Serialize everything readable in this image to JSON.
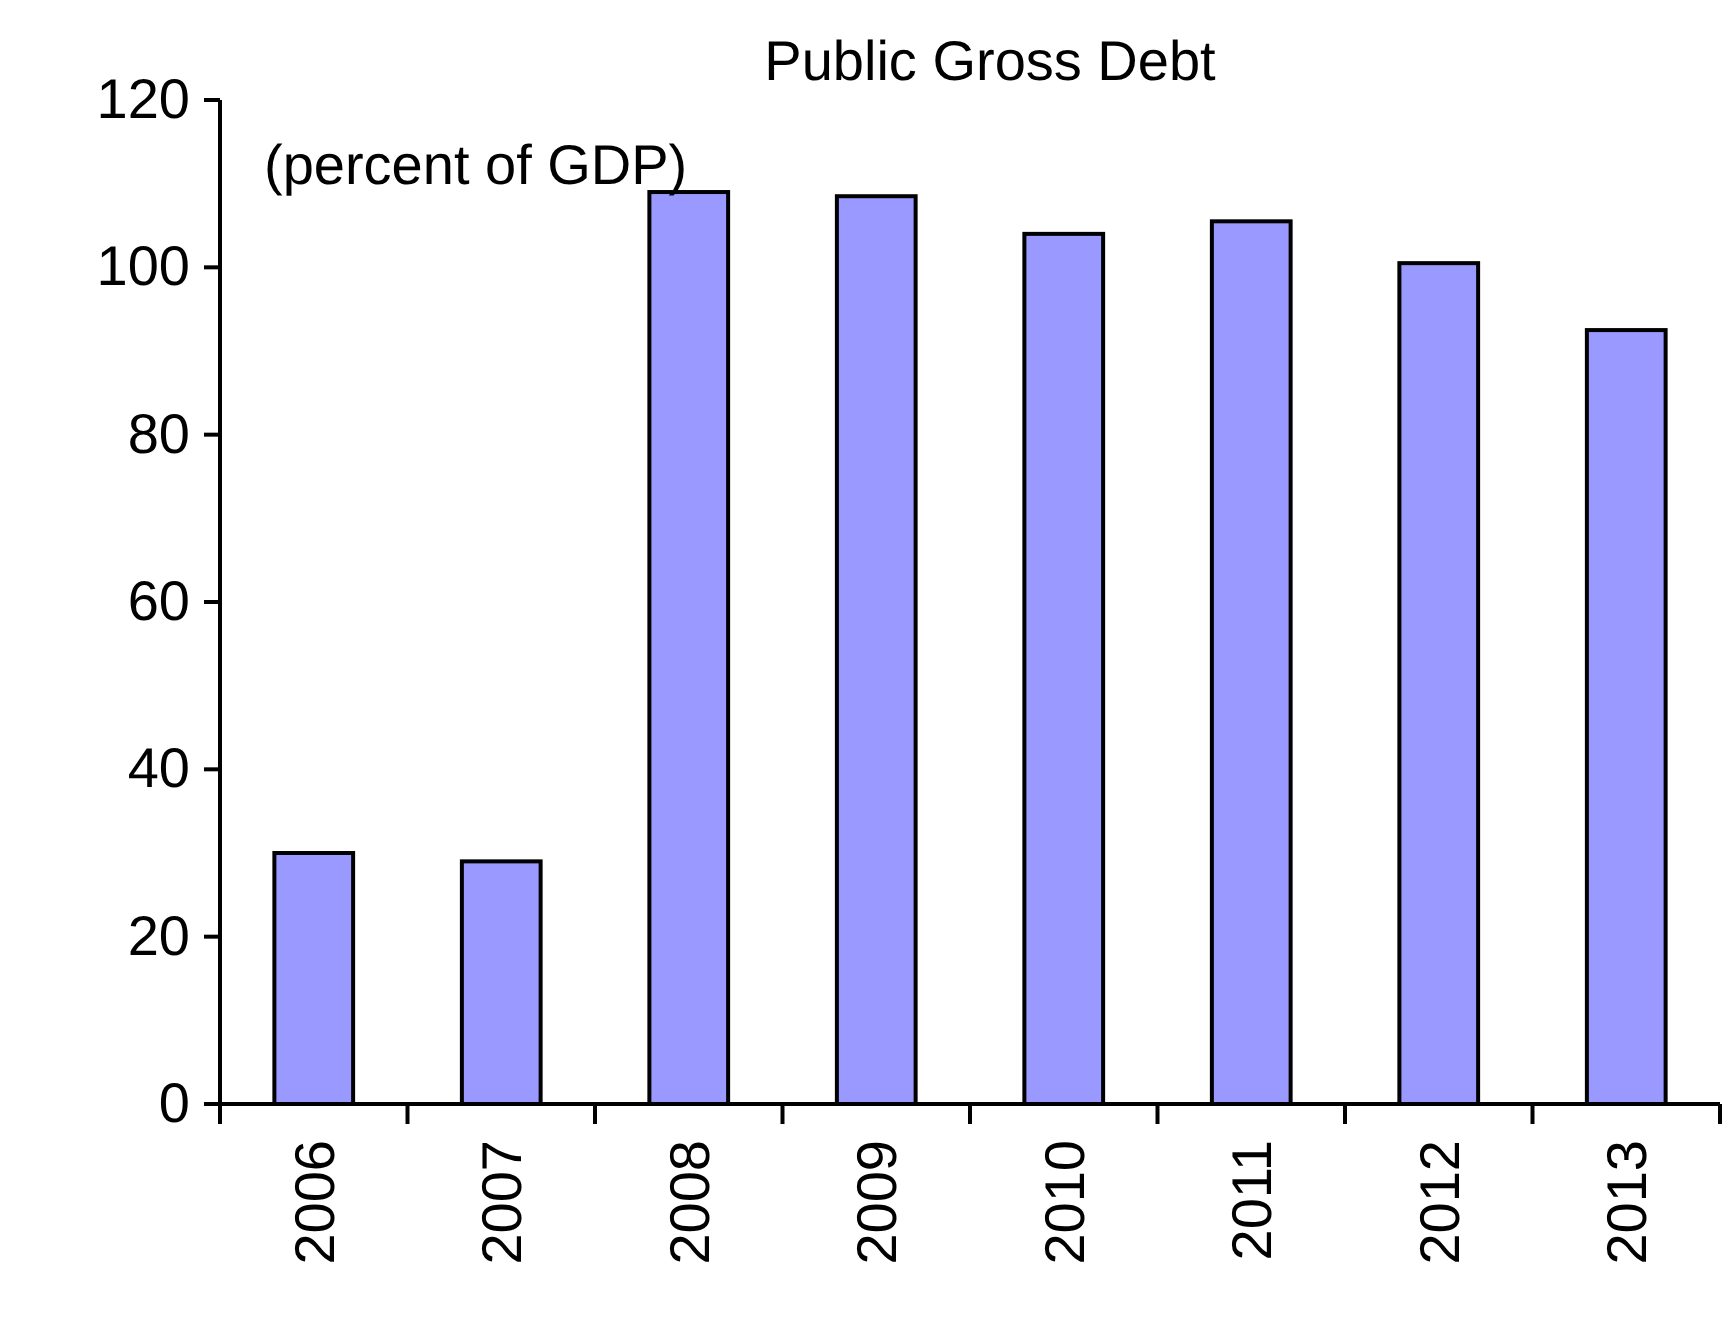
{
  "chart_data": {
    "type": "bar",
    "title": "Public Gross Debt",
    "annotations": [
      "(percent of GDP)"
    ],
    "categories": [
      "2006",
      "2007",
      "2008",
      "2009",
      "2010",
      "2011",
      "2012",
      "2013"
    ],
    "values": [
      30,
      29,
      109,
      108.5,
      104,
      105.5,
      100.5,
      92.5
    ],
    "color": "#9999ff",
    "ylim": [
      0,
      120
    ],
    "yticks": [
      0,
      20,
      40,
      60,
      80,
      100,
      120
    ],
    "grid": false
  }
}
